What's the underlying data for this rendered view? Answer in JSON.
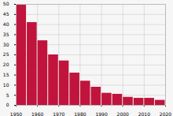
{
  "chart_data": {
    "type": "histogram",
    "bins": [
      1950,
      1955,
      1960,
      1965,
      1970,
      1975,
      1980,
      1985,
      1990,
      1995,
      2000,
      2005,
      2010,
      2015,
      2020
    ],
    "values": [
      50,
      41,
      32,
      25,
      22,
      16,
      12,
      9,
      6,
      5.5,
      4,
      3.5,
      3.5,
      2.5
    ],
    "color": "#c0143c",
    "xlim": [
      1950,
      2020
    ],
    "xticks": [
      1950,
      1960,
      1970,
      1980,
      1990,
      2000,
      2010,
      2020
    ],
    "ylim": [
      0,
      50
    ],
    "yticks": [
      0,
      5,
      10,
      15,
      20,
      25,
      30,
      35,
      40,
      45,
      50
    ],
    "grid": true
  }
}
